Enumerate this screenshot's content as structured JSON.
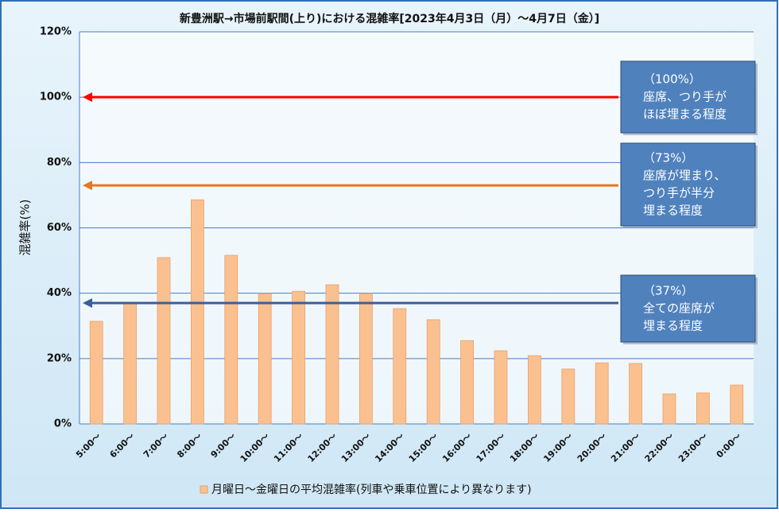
{
  "chart_data": {
    "type": "bar",
    "title": "新豊洲駅→市場前駅間(上り)における混雑率[2023年4月3日（月）～4月7日（金）]",
    "y_label": "混雑率(%)",
    "categories": [
      "5:00～",
      "6:00～",
      "7:00～",
      "8:00～",
      "9:00～",
      "10:00～",
      "11:00～",
      "12:00～",
      "13:00～",
      "14:00～",
      "15:00～",
      "16:00～",
      "17:00～",
      "18:00～",
      "19:00～",
      "20:00～",
      "21:00～",
      "22:00～",
      "23:00～",
      "0:00～"
    ],
    "series": [
      {
        "name": "月曜日～金曜日の平均混雑率(列車や乗車位置により異なります)",
        "color": "#fbc08f",
        "values": [
          31.4,
          37.2,
          50.9,
          68.6,
          51.6,
          39.9,
          40.6,
          42.6,
          39.9,
          35.3,
          31.9,
          25.5,
          22.4,
          20.9,
          16.8,
          18.7,
          18.5,
          9.2,
          9.5,
          11.9
        ]
      }
    ],
    "ylim": [
      0,
      120
    ],
    "yticks": [
      {
        "value": 0,
        "label": "0%"
      },
      {
        "value": 20,
        "label": "20%"
      },
      {
        "value": 40,
        "label": "40%"
      },
      {
        "value": 60,
        "label": "60%"
      },
      {
        "value": 80,
        "label": "80%"
      },
      {
        "value": 100,
        "label": "100%"
      },
      {
        "value": 120,
        "label": "120%"
      }
    ],
    "grid": true,
    "annotations": [
      {
        "value": 100,
        "color": "#ff0000",
        "lines": [
          "（100%）",
          "座席、つり手が",
          "ほぼ埋まる程度"
        ]
      },
      {
        "value": 73,
        "color": "#e87722",
        "lines": [
          "（73%）",
          "座席が埋まり、",
          "つり手が半分",
          "埋まる程度"
        ]
      },
      {
        "value": 37,
        "color": "#3a5f9a",
        "lines": [
          "（37%）",
          "全ての座席が",
          "埋まる程度"
        ]
      }
    ]
  }
}
